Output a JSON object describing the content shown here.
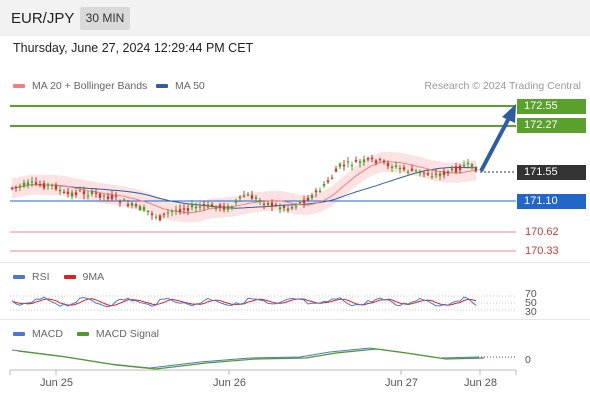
{
  "header": {
    "symbol": "EUR/JPY",
    "timeframe": "30 MIN"
  },
  "datetime": "Thursday, June 27, 2024 12:29:44 PM CET",
  "legend": {
    "ma20_label": "MA 20 + Bollinger Bands",
    "ma50_label": "MA 50",
    "credit": "Research © 2024 Trading Central"
  },
  "levels": {
    "r2": "172.55",
    "r1": "172.27",
    "current": "171.55",
    "s0": "171.10",
    "s1": "170.62",
    "s2": "170.33"
  },
  "rsi": {
    "label": "RSI",
    "ma_label": "9MA",
    "ticks": [
      "70",
      "50",
      "30"
    ]
  },
  "macd": {
    "label": "MACD",
    "signal_label": "MACD Signal",
    "zero_tick": "0"
  },
  "x_axis": {
    "labels": [
      "Jun 25",
      "Jun 26",
      "Jun 27",
      "Jun 28"
    ]
  },
  "colors": {
    "ma20": "#f08080",
    "ma50": "#2f5d9e",
    "bollinger": "#fbd5d5",
    "resistance": "#5aa02c",
    "support": "#2266cc",
    "candle_up": "#4f9a2b",
    "candle_down": "#c0392b",
    "rsi": "#4a78d4",
    "rsi_ma": "#d22",
    "macd": "#4a78d4",
    "macd_signal": "#4f9a2b"
  },
  "icons": {
    "trend_arrow": "up-arrow-icon"
  }
}
